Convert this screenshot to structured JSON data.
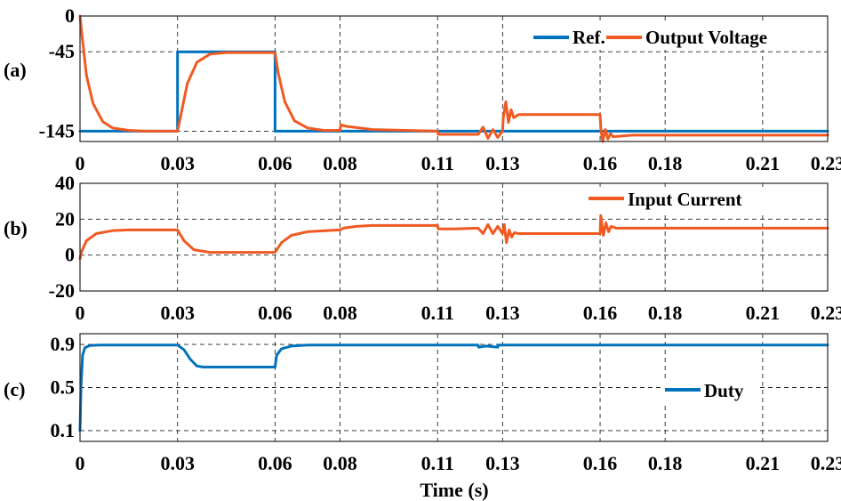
{
  "xlabel": "Time (s)",
  "x_ticks": [
    "0",
    "0.03",
    "0.06",
    "0.08",
    "0.11",
    "0.13",
    "0.16",
    "0.18",
    "0.21",
    "0.23"
  ],
  "x_tick_values": [
    0,
    0.03,
    0.06,
    0.08,
    0.11,
    0.13,
    0.16,
    0.18,
    0.21,
    0.23
  ],
  "colors": {
    "ref": "#0072BD",
    "orange": "#F05A22",
    "duty": "#0072BD",
    "grid": "#262626"
  },
  "chart_data": [
    {
      "type": "line",
      "panel_label": "(a)",
      "xlim": [
        0,
        0.23
      ],
      "ylim": [
        -158,
        0
      ],
      "y_ticks": [
        0,
        -45,
        -145
      ],
      "y_tick_labels": [
        "0",
        "-45",
        "-145"
      ],
      "grid": true,
      "legend_position": "top-right",
      "series": [
        {
          "name": "Ref.",
          "color": "#0072BD",
          "x": [
            0,
            0.03,
            0.03,
            0.06,
            0.06,
            0.23
          ],
          "y": [
            -145,
            -145,
            -45,
            -45,
            -145,
            -145
          ]
        },
        {
          "name": "Output Voltage",
          "color": "#F05A22",
          "x": [
            0,
            0.0005,
            0.002,
            0.004,
            0.007,
            0.01,
            0.015,
            0.02,
            0.03,
            0.031,
            0.033,
            0.036,
            0.04,
            0.045,
            0.06,
            0.061,
            0.063,
            0.066,
            0.07,
            0.075,
            0.08,
            0.0802,
            0.082,
            0.09,
            0.1,
            0.11,
            0.1102,
            0.12,
            0.1225,
            0.124,
            0.1255,
            0.127,
            0.1285,
            0.13,
            0.1302,
            0.131,
            0.1318,
            0.1326,
            0.1334,
            0.135,
            0.145,
            0.16,
            0.1602,
            0.1608,
            0.1616,
            0.1624,
            0.1632,
            0.164,
            0.17,
            0.2,
            0.23
          ],
          "y": [
            0,
            -20,
            -75,
            -110,
            -133,
            -141,
            -144,
            -145,
            -145,
            -125,
            -85,
            -58,
            -48,
            -46,
            -46,
            -72,
            -108,
            -132,
            -141,
            -144,
            -144,
            -137,
            -139,
            -143,
            -144,
            -145,
            -149,
            -149,
            -149,
            -140,
            -154,
            -143,
            -153,
            -145,
            -128,
            -108,
            -134,
            -118,
            -128,
            -124,
            -124,
            -124,
            -142,
            -158,
            -143,
            -155,
            -148,
            -152,
            -150,
            -150,
            -150
          ]
        }
      ]
    },
    {
      "type": "line",
      "panel_label": "(b)",
      "xlim": [
        0,
        0.23
      ],
      "ylim": [
        -20,
        40
      ],
      "y_ticks": [
        40,
        20,
        0,
        -20
      ],
      "y_tick_labels": [
        "40",
        "20",
        "0",
        "-20"
      ],
      "grid": true,
      "legend_position": "top-right",
      "series": [
        {
          "name": "Input Current",
          "color": "#F05A22",
          "x": [
            0,
            0.0005,
            0.002,
            0.005,
            0.01,
            0.015,
            0.02,
            0.03,
            0.032,
            0.035,
            0.04,
            0.06,
            0.062,
            0.065,
            0.07,
            0.08,
            0.081,
            0.085,
            0.09,
            0.11,
            0.1102,
            0.115,
            0.1225,
            0.124,
            0.1255,
            0.127,
            0.1285,
            0.13,
            0.1305,
            0.1312,
            0.132,
            0.1328,
            0.1336,
            0.135,
            0.16,
            0.1602,
            0.161,
            0.1618,
            0.1626,
            0.1634,
            0.165,
            0.18,
            0.23
          ],
          "y": [
            -2,
            2,
            8,
            12,
            13.6,
            14,
            14,
            14,
            8,
            3,
            1.5,
            1.5,
            7,
            11,
            13,
            14,
            15,
            16,
            16.5,
            16.5,
            14.6,
            14.6,
            15,
            12,
            17,
            12,
            16,
            12,
            17,
            7,
            14,
            10,
            12.5,
            12,
            12,
            22,
            11,
            18,
            13,
            16,
            15,
            15,
            15
          ]
        }
      ]
    },
    {
      "type": "line",
      "panel_label": "(c)",
      "xlim": [
        0,
        0.23
      ],
      "ylim": [
        0,
        1
      ],
      "y_ticks": [
        0.9,
        0.5,
        0.1
      ],
      "y_tick_labels": [
        "0.9",
        "0.5",
        "0.1"
      ],
      "grid": true,
      "legend_position": "right",
      "series": [
        {
          "name": "Duty",
          "color": "#0072BD",
          "x": [
            0,
            0.0003,
            0.0008,
            0.0015,
            0.003,
            0.006,
            0.01,
            0.03,
            0.032,
            0.034,
            0.036,
            0.038,
            0.06,
            0.0605,
            0.062,
            0.065,
            0.07,
            0.11,
            0.1225,
            0.1226,
            0.125,
            0.1285,
            0.1286,
            0.13,
            0.23
          ],
          "y": [
            0.1,
            0.5,
            0.8,
            0.87,
            0.89,
            0.895,
            0.895,
            0.895,
            0.85,
            0.76,
            0.7,
            0.69,
            0.69,
            0.8,
            0.86,
            0.885,
            0.895,
            0.895,
            0.895,
            0.875,
            0.885,
            0.875,
            0.895,
            0.895,
            0.895
          ]
        }
      ]
    }
  ]
}
